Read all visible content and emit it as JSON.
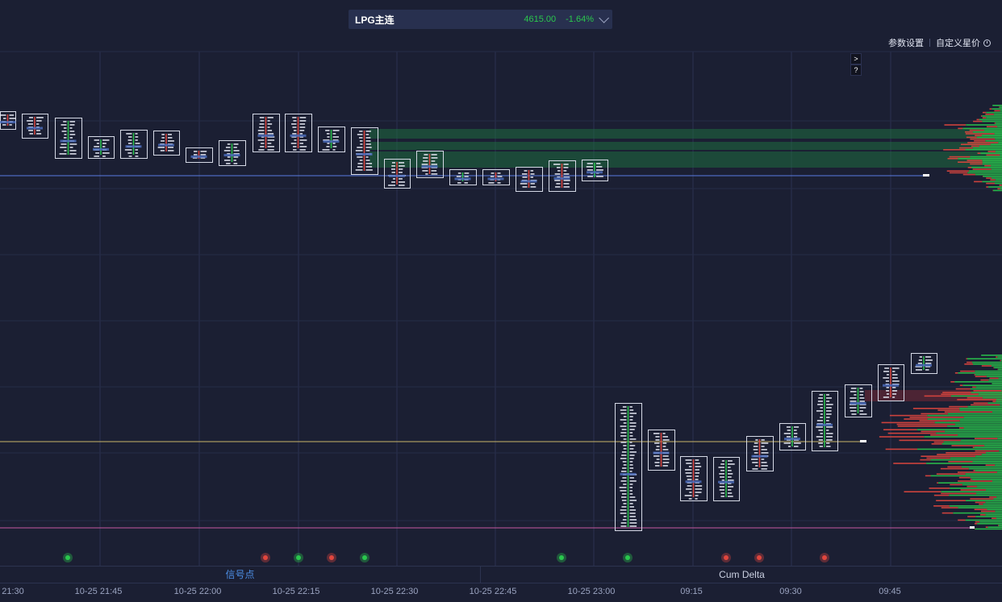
{
  "header": {
    "symbol": "LPG主连",
    "price": "4615.00",
    "change": "-1.64%",
    "links": [
      "参数设置",
      "自定义星价"
    ]
  },
  "mini_buttons": [
    ">",
    "?"
  ],
  "tabs": [
    "信号点",
    "Cum Delta"
  ],
  "time_axis": [
    "21:30",
    "10-25 21:45",
    "10-25 22:00",
    "10-25 22:15",
    "10-25 22:30",
    "10-25 22:45",
    "10-25 23:00",
    "09:15",
    "09:30",
    "09:45"
  ],
  "colors": {
    "up": "#2ac74d",
    "down": "#e0463e",
    "accent": "#4d8fe6",
    "box": "#d5d9e6"
  }
}
